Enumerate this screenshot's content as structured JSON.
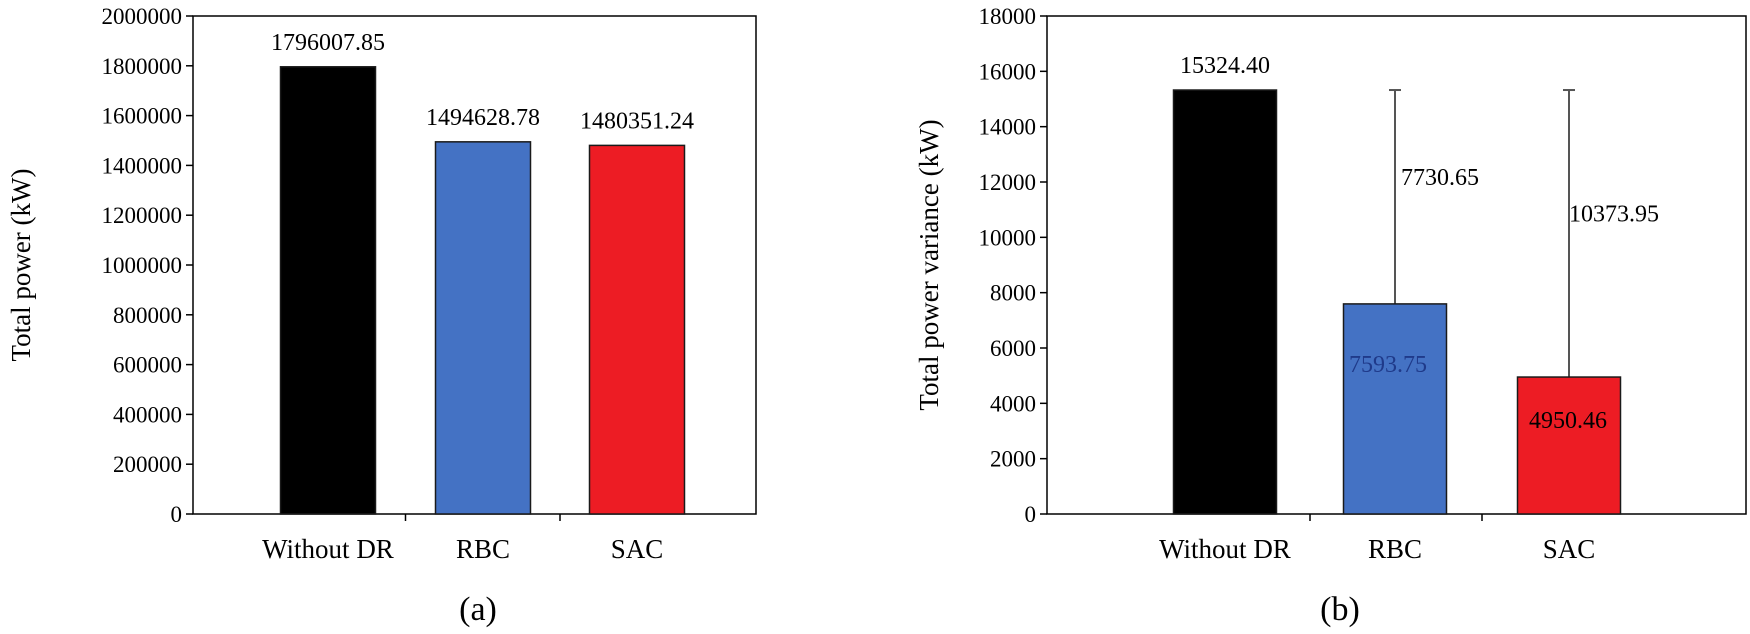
{
  "chart_data": [
    {
      "type": "bar",
      "caption": "(a)",
      "categories": [
        "Without DR",
        "RBC",
        "SAC"
      ],
      "values": [
        1796007.85,
        1494628.78,
        1480351.24
      ],
      "data_labels": [
        "1796007.85",
        "1494628.78",
        "1480351.24"
      ],
      "colors": [
        "#000000",
        "#4472c4",
        "#ed1c24"
      ],
      "ylabel": "Total power (kW)",
      "xlabel": "",
      "ylim": [
        0,
        2000000
      ],
      "yticks": [
        0,
        200000,
        400000,
        600000,
        800000,
        1000000,
        1200000,
        1400000,
        1600000,
        1800000,
        2000000
      ],
      "grid": false
    },
    {
      "type": "bar",
      "caption": "(b)",
      "categories": [
        "Without DR",
        "RBC",
        "SAC"
      ],
      "values": [
        15324.4,
        7593.75,
        4950.46
      ],
      "data_labels": [
        "15324.40",
        "7593.75",
        "4950.46"
      ],
      "data_label_colors": [
        "#000000",
        "#1f3a8a",
        "#000000"
      ],
      "error_bars": [
        null,
        7730.65,
        10373.95
      ],
      "error_labels": [
        "",
        "7730.65",
        "10373.95"
      ],
      "colors": [
        "#000000",
        "#4472c4",
        "#ed1c24"
      ],
      "ylabel": "Total power variance (kW)",
      "xlabel": "",
      "ylim": [
        0,
        18000
      ],
      "yticks": [
        0,
        2000,
        4000,
        6000,
        8000,
        10000,
        12000,
        14000,
        16000,
        18000
      ],
      "grid": false
    }
  ]
}
